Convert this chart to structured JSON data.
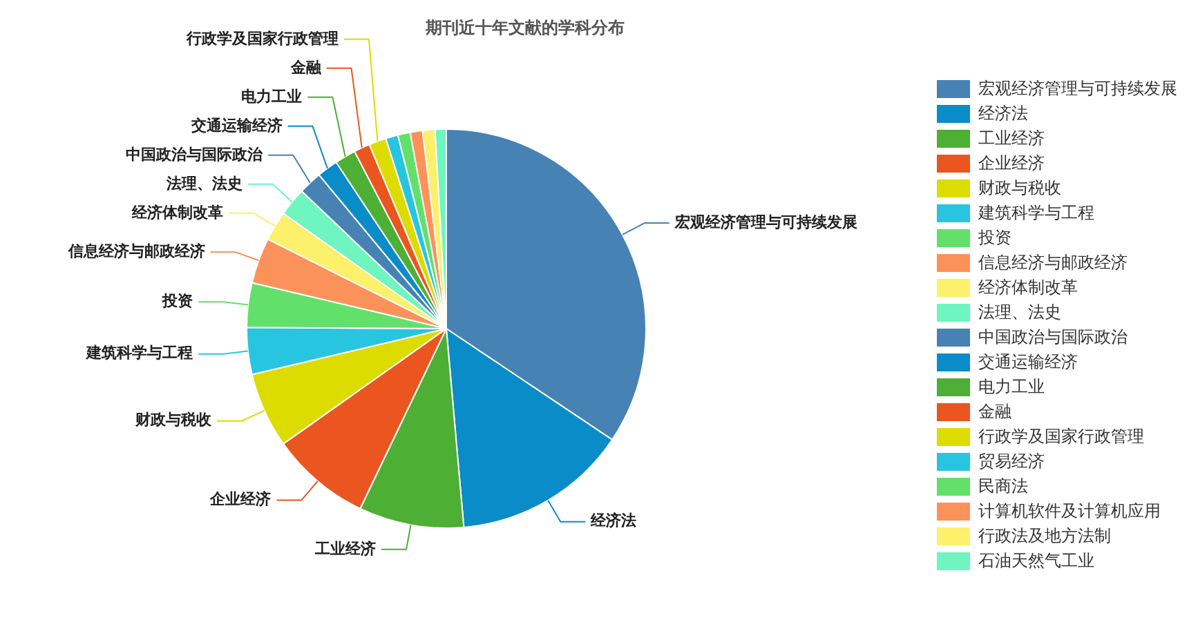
{
  "chart_data": {
    "type": "pie",
    "title": "期刊近十年文献的学科分布",
    "categories": [
      "宏观经济管理与可持续发展",
      "经济法",
      "工业经济",
      "企业经济",
      "财政与税收",
      "建筑科学与工程",
      "投资",
      "信息经济与邮政经济",
      "经济体制改革",
      "法理、法史",
      "中国政治与国际政治",
      "交通运输经济",
      "电力工业",
      "金融",
      "行政学及国家行政管理",
      "贸易经济",
      "民商法",
      "计算机软件及计算机应用",
      "行政法及地方法制",
      "石油天然气工业"
    ],
    "values": [
      34.4,
      14.2,
      8.5,
      8.1,
      6.1,
      3.8,
      3.6,
      3.7,
      2.4,
      2.3,
      1.9,
      1.7,
      1.7,
      1.3,
      1.4,
      1.0,
      1.0,
      1.0,
      1.0,
      0.9
    ],
    "colors": [
      "#4682b4",
      "#0a8cc8",
      "#4daf33",
      "#ea5520",
      "#dcdc00",
      "#27c5e0",
      "#62e06a",
      "#fb925a",
      "#fdf06a",
      "#6ef5c0",
      "#4682b4",
      "#0a8cc8",
      "#4daf33",
      "#ea5520",
      "#dcdc00",
      "#27c5e0",
      "#62e06a",
      "#fb925a",
      "#fdf06a",
      "#6ef5c0"
    ],
    "legend": "right"
  }
}
